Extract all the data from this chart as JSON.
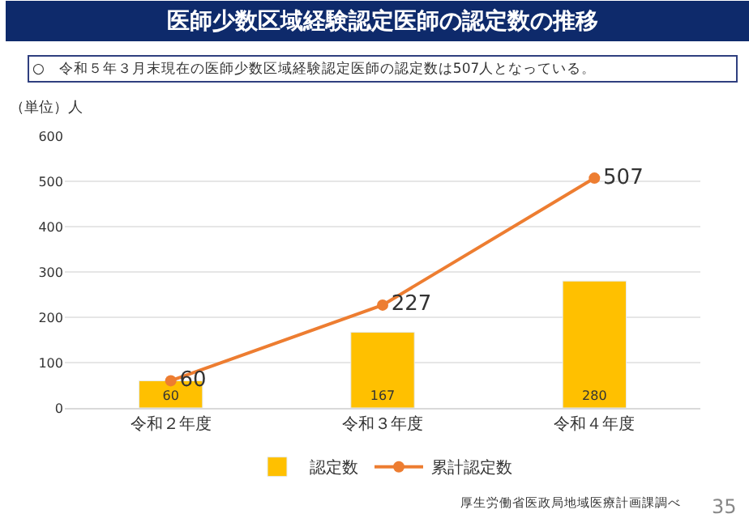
{
  "chart_data": {
    "type": "bar",
    "title": "医師少数区域経験認定医師の認定数の推移",
    "subtitle": "○　令和５年３月末現在の医師少数区域経験認定医師の認定数は507人となっている。",
    "ylabel": "（単位）人",
    "categories": [
      "令和２年度",
      "令和３年度",
      "令和４年度"
    ],
    "series": [
      {
        "name": "認定数",
        "color": "#ffc000",
        "values": [
          60,
          167,
          280
        ]
      },
      {
        "name": "累計認定数",
        "type": "line",
        "color": "#ed7d31",
        "values": [
          60,
          227,
          507
        ]
      }
    ],
    "ylim": [
      0,
      600
    ],
    "yticks": [
      0,
      100,
      200,
      300,
      400,
      500,
      600
    ],
    "grid": "y",
    "legend": "bottom",
    "marker": "circle",
    "data_labels": true,
    "annotations": [
      "厚生労働省医政局地域医療計画課調べ",
      "35"
    ]
  }
}
